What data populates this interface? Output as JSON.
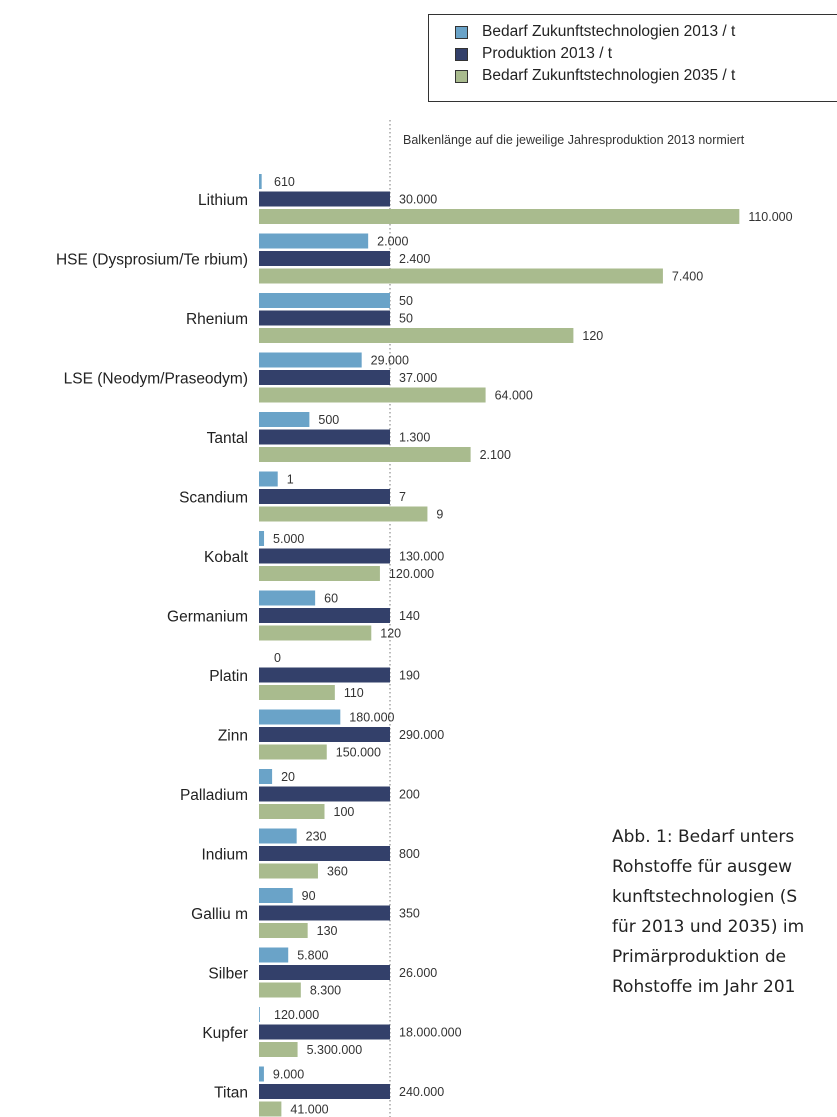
{
  "legend": {
    "items": [
      {
        "label": "Bedarf Zukunftstechnologien 2013  /  t",
        "color": "#6aa3c8"
      },
      {
        "label": "Produktion 2013  /  t",
        "color": "#33406a"
      },
      {
        "label": "Bedarf Zukunftstechnologien 2035  /  t",
        "color": "#a9bb8e"
      }
    ]
  },
  "caption": {
    "lines": [
      "Abb. 1: Bedarf unters",
      "Rohstoffe für ausgew",
      "kunftstechnologien (S",
      "für 2013 und 2035) im",
      "Primärproduktion de",
      "Rohstoffe im Jahr 201"
    ]
  },
  "chart_data": {
    "type": "bar",
    "orientation": "horizontal",
    "annotation": "Balkenlänge auf die jeweilige Jahresproduktion 2013 normiert",
    "categories": [
      "Lithium",
      "HSE (Dysprosium/Te rbium)",
      "Rhenium",
      "LSE (Neodym/Praseodym)",
      "Tantal",
      "Scandium",
      "Kobalt",
      "Germanium",
      "Platin",
      "Zinn",
      "Palladium",
      "Indium",
      "Galliu m",
      "Silber",
      "Kupfer",
      "Titan"
    ],
    "series": [
      {
        "name": "Bedarf Zukunftstechnologien 2013  /  t",
        "color": "#6aa3c8",
        "values": [
          610,
          2000,
          50,
          29000,
          500,
          1,
          5000,
          60,
          0,
          180000,
          20,
          230,
          90,
          5800,
          120000,
          9000
        ],
        "labels": [
          "610",
          "2.000",
          "50",
          "29.000",
          "500",
          "1",
          "5.000",
          "60",
          "0",
          "180.000",
          "20",
          "230",
          "90",
          "5.800",
          "120.000",
          "9.000"
        ]
      },
      {
        "name": "Produktion 2013  /  t",
        "color": "#33406a",
        "values": [
          30000,
          2400,
          50,
          37000,
          1300,
          7,
          130000,
          140,
          190,
          290000,
          200,
          800,
          350,
          26000,
          18000000,
          240000
        ],
        "labels": [
          "30.000",
          "2.400",
          "50",
          "37.000",
          "1.300",
          "7",
          "130.000",
          "140",
          "190",
          "290.000",
          "200",
          "800",
          "350",
          "26.000",
          "18.000.000",
          "240.000"
        ]
      },
      {
        "name": "Bedarf Zukunftstechnologien 2035  /  t",
        "color": "#a9bb8e",
        "values": [
          110000,
          7400,
          120,
          64000,
          2100,
          9,
          120000,
          120,
          110,
          150000,
          100,
          360,
          130,
          8300,
          5300000,
          41000
        ],
        "labels": [
          "110.000",
          "7.400",
          "120",
          "64.000",
          "2.100",
          "9",
          "120.000",
          "120",
          "110",
          "150.000",
          "100",
          "360",
          "130",
          "8.300",
          "5.300.000",
          "41.000"
        ]
      }
    ],
    "normalization": "value / Produktion 2013",
    "grid": false,
    "legend_position": "top-right"
  }
}
